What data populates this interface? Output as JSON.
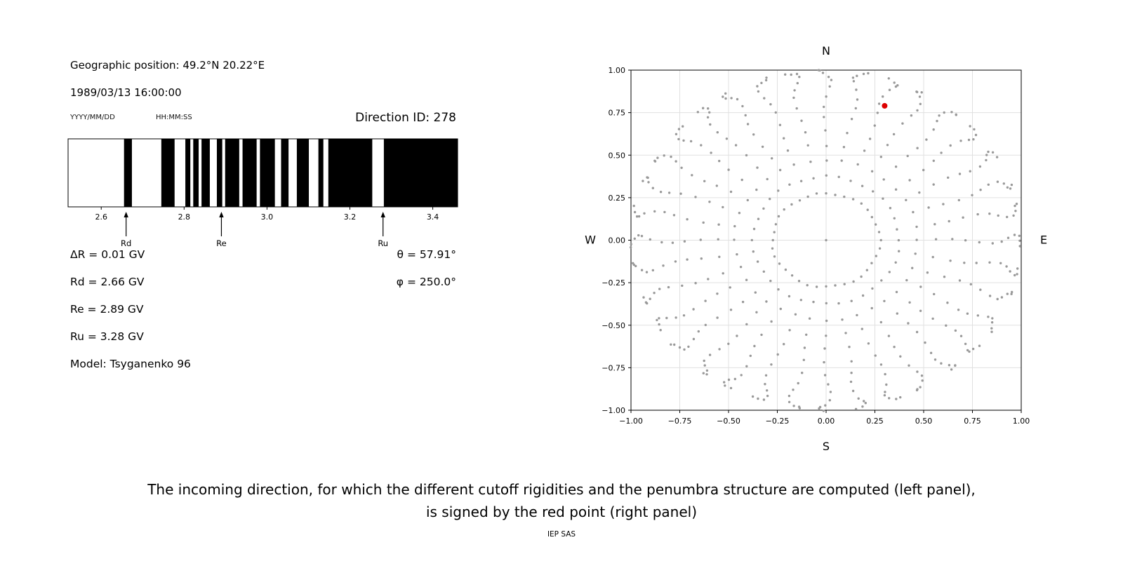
{
  "page": {
    "caption_line1": "The incoming direction, for which the different cutoff rigidities and the penumbra structure are computed (left panel),",
    "caption_line2": "is signed by the red point (right panel)",
    "credit": "IEP SAS"
  },
  "info_panel": {
    "geographic_position": "Geographic position: 49.2°N 20.22°E",
    "datetime": "1989/03/13 16:00:00",
    "date_format_label": "YYYY/MM/DD",
    "time_format_label": "HH:MM:SS",
    "direction_id": "Direction ID: 278",
    "delta_r": "ΔR = 0.01 GV",
    "rd": "Rd = 2.66 GV",
    "re": "Re = 2.89 GV",
    "ru": "Ru = 3.28 GV",
    "model": "Model: Tsyganenko 96",
    "theta": "θ = 57.91°",
    "phi": "φ = 250.0°"
  },
  "chart_data": [
    {
      "type": "bar",
      "name": "penumbra-structure",
      "description": "Cutoff rigidity penumbra: black bands = allowed rigidity intervals (GV), white = forbidden",
      "xlim": [
        2.52,
        3.46
      ],
      "xticks": [
        2.6,
        2.8,
        3.0,
        3.2,
        3.4
      ],
      "bar_color": "#000000",
      "allowed_bands_gv": [
        [
          2.655,
          2.674
        ],
        [
          2.745,
          2.777
        ],
        [
          2.803,
          2.815
        ],
        [
          2.822,
          2.835
        ],
        [
          2.842,
          2.862
        ],
        [
          2.879,
          2.892
        ],
        [
          2.899,
          2.933
        ],
        [
          2.941,
          2.975
        ],
        [
          2.983,
          3.019
        ],
        [
          3.034,
          3.052
        ],
        [
          3.072,
          3.101
        ],
        [
          3.124,
          3.136
        ],
        [
          3.148,
          3.254
        ],
        [
          3.282,
          3.46
        ]
      ],
      "markers": [
        {
          "label": "Rd",
          "value_gv": 2.66
        },
        {
          "label": "Re",
          "value_gv": 2.89
        },
        {
          "label": "Ru",
          "value_gv": 3.28
        }
      ]
    },
    {
      "type": "scatter",
      "name": "incoming-directions-map",
      "compass": {
        "top": "N",
        "bottom": "S",
        "left": "W",
        "right": "E"
      },
      "xlim": [
        -1,
        1
      ],
      "ylim": [
        -1,
        1
      ],
      "xticks": [
        -1.0,
        -0.75,
        -0.5,
        -0.25,
        0.0,
        0.25,
        0.5,
        0.75,
        1.0
      ],
      "yticks": [
        -1.0,
        -0.75,
        -0.5,
        -0.25,
        0.0,
        0.25,
        0.5,
        0.75,
        1.0
      ],
      "grid": true,
      "grid_color": "#e0e0e0",
      "direction_grid": {
        "azimuth_start_deg": 0,
        "azimuth_step_deg": 10,
        "azimuth_count": 36,
        "zenith_angles_deg": [
          16,
          22,
          28,
          34,
          40,
          46,
          52,
          58,
          64,
          70,
          75,
          80,
          84,
          88
        ],
        "radius_mapping": "sin(zenith)",
        "dot_color": "#999999",
        "center_dot": true
      },
      "highlight_point": {
        "x": 0.3,
        "y": 0.79,
        "color": "#dd0000",
        "meaning": "incoming direction ID 278"
      }
    }
  ]
}
